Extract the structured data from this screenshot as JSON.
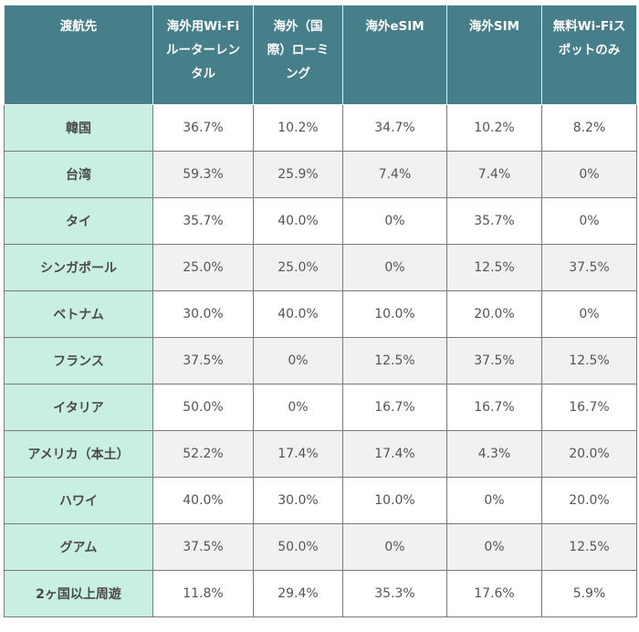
{
  "table": {
    "headers": [
      {
        "lines": [
          "渡航先"
        ]
      },
      {
        "lines": [
          "海外用Wi-Fi",
          "ルーターレン",
          "タル"
        ]
      },
      {
        "lines": [
          "海外（国",
          "際）ローミ",
          "ング"
        ]
      },
      {
        "lines": [
          "海外eSIM"
        ]
      },
      {
        "lines": [
          "海外SIM"
        ]
      },
      {
        "lines": [
          "無料Wi-Fiス",
          "ポットのみ"
        ]
      }
    ],
    "rows": [
      {
        "destination": "韓国",
        "values": [
          "36.7%",
          "10.2%",
          "34.7%",
          "10.2%",
          "8.2%"
        ]
      },
      {
        "destination": "台湾",
        "values": [
          "59.3%",
          "25.9%",
          "7.4%",
          "7.4%",
          "0%"
        ]
      },
      {
        "destination": "タイ",
        "values": [
          "35.7%",
          "40.0%",
          "0%",
          "35.7%",
          "0%"
        ]
      },
      {
        "destination": "シンガポール",
        "values": [
          "25.0%",
          "25.0%",
          "0%",
          "12.5%",
          "37.5%"
        ]
      },
      {
        "destination": "ベトナム",
        "values": [
          "30.0%",
          "40.0%",
          "10.0%",
          "20.0%",
          "0%"
        ]
      },
      {
        "destination": "フランス",
        "values": [
          "37.5%",
          "0%",
          "12.5%",
          "37.5%",
          "12.5%"
        ]
      },
      {
        "destination": "イタリア",
        "values": [
          "50.0%",
          "0%",
          "16.7%",
          "16.7%",
          "16.7%"
        ]
      },
      {
        "destination": "アメリカ（本土）",
        "values": [
          "52.2%",
          "17.4%",
          "17.4%",
          "4.3%",
          "20.0%"
        ]
      },
      {
        "destination": "ハワイ",
        "values": [
          "40.0%",
          "30.0%",
          "10.0%",
          "0%",
          "20.0%"
        ]
      },
      {
        "destination": "グアム",
        "values": [
          "37.5%",
          "50.0%",
          "0%",
          "0%",
          "12.5%"
        ]
      },
      {
        "destination": "2ヶ国以上周遊",
        "values": [
          "11.8%",
          "29.4%",
          "35.3%",
          "17.6%",
          "5.9%"
        ]
      }
    ]
  },
  "colors": {
    "header_bg": "#467e89",
    "header_text": "#ffffff",
    "destination_bg": "#c9efe1",
    "stripe_bg": "#f1f1f1",
    "border": "#7a7a7a"
  }
}
